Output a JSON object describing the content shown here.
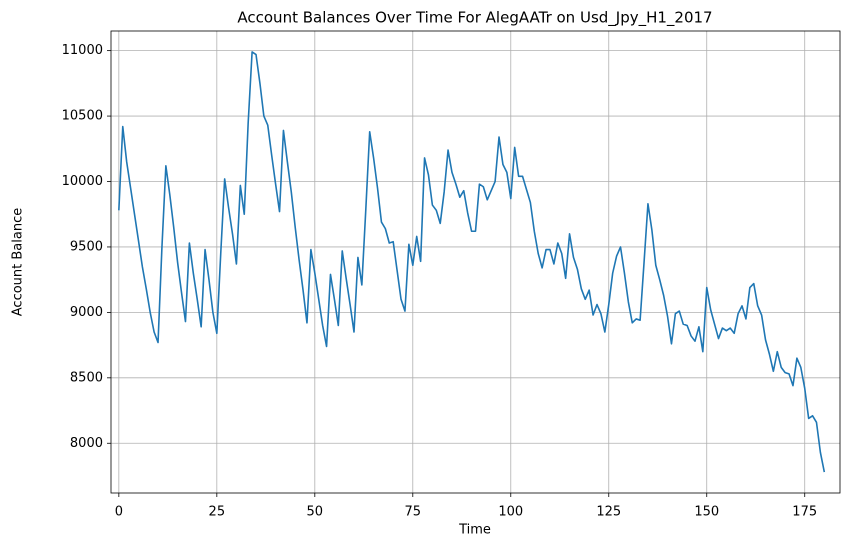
{
  "chart_data": {
    "type": "line",
    "title": "Account Balances Over Time For AlegAATr on Usd_Jpy_H1_2017",
    "x_label": "Time",
    "y_label": "Account Balance",
    "x": [
      0,
      1,
      2,
      3,
      4,
      5,
      6,
      7,
      8,
      9,
      10,
      11,
      12,
      13,
      14,
      15,
      16,
      17,
      18,
      19,
      20,
      21,
      22,
      23,
      24,
      25,
      26,
      27,
      28,
      29,
      30,
      31,
      32,
      33,
      34,
      35,
      36,
      37,
      38,
      39,
      40,
      41,
      42,
      43,
      44,
      45,
      46,
      47,
      48,
      49,
      50,
      51,
      52,
      53,
      54,
      55,
      56,
      57,
      58,
      59,
      60,
      61,
      62,
      63,
      64,
      65,
      66,
      67,
      68,
      69,
      70,
      71,
      72,
      73,
      74,
      75,
      76,
      77,
      78,
      79,
      80,
      81,
      82,
      83,
      84,
      85,
      86,
      87,
      88,
      89,
      90,
      91,
      92,
      93,
      94,
      95,
      96,
      97,
      98,
      99,
      100,
      101,
      102,
      103,
      104,
      105,
      106,
      107,
      108,
      109,
      110,
      111,
      112,
      113,
      114,
      115,
      116,
      117,
      118,
      119,
      120,
      121,
      122,
      123,
      124,
      125,
      126,
      127,
      128,
      129,
      130,
      131,
      132,
      133,
      134,
      135,
      136,
      137,
      138,
      139,
      140,
      141,
      142,
      143,
      144,
      145,
      146,
      147,
      148,
      149,
      150,
      151,
      152,
      153,
      154,
      155,
      156,
      157,
      158,
      159,
      160,
      161,
      162,
      163,
      164,
      165,
      166,
      167,
      168,
      169,
      170,
      171,
      172,
      173,
      174,
      175,
      176,
      177,
      178,
      179,
      180
    ],
    "series": [
      {
        "name": "Account Balance",
        "color": "#1f77b4",
        "values": [
          9780,
          10420,
          10150,
          9950,
          9750,
          9550,
          9350,
          9180,
          9000,
          8850,
          8770,
          9500,
          10120,
          9900,
          9650,
          9380,
          9150,
          8930,
          9530,
          9300,
          9100,
          8890,
          9480,
          9250,
          9000,
          8840,
          9450,
          10020,
          9800,
          9600,
          9370,
          9970,
          9750,
          10450,
          10990,
          10970,
          10750,
          10500,
          10430,
          10200,
          9980,
          9770,
          10390,
          10150,
          9920,
          9650,
          9400,
          9170,
          8920,
          9480,
          9300,
          9100,
          8900,
          8740,
          9290,
          9100,
          8900,
          9470,
          9260,
          9060,
          8850,
          9420,
          9210,
          9780,
          10380,
          10180,
          9950,
          9690,
          9640,
          9530,
          9540,
          9320,
          9100,
          9010,
          9520,
          9360,
          9580,
          9390,
          10180,
          10050,
          9820,
          9780,
          9680,
          9920,
          10240,
          10070,
          9980,
          9880,
          9930,
          9760,
          9620,
          9620,
          9980,
          9960,
          9860,
          9930,
          10000,
          10340,
          10130,
          10070,
          9870,
          10260,
          10040,
          10040,
          9940,
          9840,
          9620,
          9450,
          9340,
          9480,
          9480,
          9370,
          9530,
          9450,
          9260,
          9600,
          9420,
          9330,
          9180,
          9100,
          9170,
          8980,
          9060,
          8990,
          8850,
          9060,
          9300,
          9430,
          9500,
          9300,
          9080,
          8920,
          8950,
          8940,
          9380,
          9830,
          9630,
          9360,
          9250,
          9130,
          8970,
          8760,
          8990,
          9010,
          8910,
          8900,
          8820,
          8780,
          8890,
          8700,
          9190,
          9020,
          8910,
          8800,
          8880,
          8860,
          8880,
          8840,
          8990,
          9050,
          8950,
          9190,
          9220,
          9050,
          8980,
          8790,
          8680,
          8550,
          8700,
          8580,
          8540,
          8530,
          8440,
          8650,
          8580,
          8420,
          8190,
          8210,
          8160,
          7930,
          7780
        ]
      }
    ],
    "xlim": [
      -2,
      184
    ],
    "ylim": [
      7620,
      11150
    ],
    "xticks": [
      0,
      25,
      50,
      75,
      100,
      125,
      150,
      175
    ],
    "yticks": [
      8000,
      8500,
      9000,
      9500,
      10000,
      10500,
      11000
    ],
    "grid": true
  }
}
